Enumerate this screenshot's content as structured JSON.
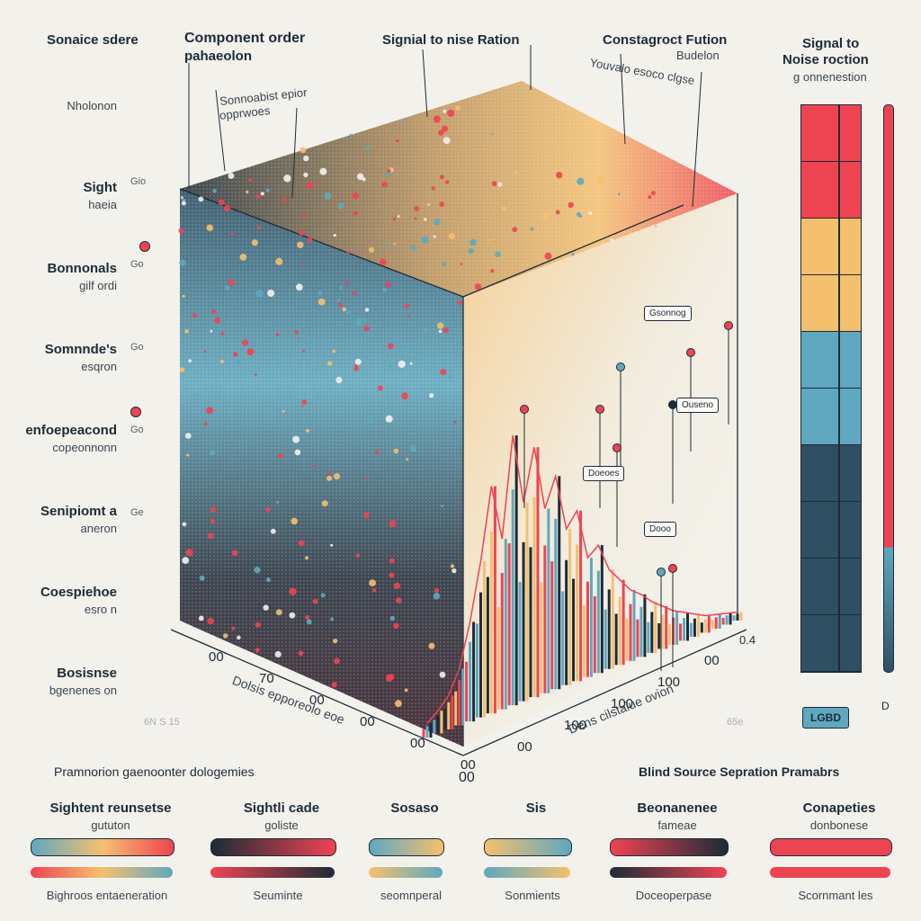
{
  "header": {
    "left_title": "Sonaice sdere",
    "component_order": "Component order",
    "component_order_sub": "pahaeolon",
    "center_title": "Signial to nise Ration",
    "right_title": "Constagroct Fution",
    "right_title_sub": "Budelon",
    "inner_note_1": "Sonnoabist epior",
    "inner_note_2": "opprwoes",
    "inner_note_3": "Youvalo esoco clgse"
  },
  "left_labels": [
    {
      "title": "",
      "sub": "Nholonon"
    },
    {
      "title": "Sight",
      "sub": "haeia"
    },
    {
      "title": "Bonnonals",
      "sub": "gilf ordi"
    },
    {
      "title": "Somnnde's",
      "sub": "esqron"
    },
    {
      "title": "enfoepeacond",
      "sub": "copeonnonn"
    },
    {
      "title": "Senipiomt a",
      "sub": "aneron"
    },
    {
      "title": "Coespiehoe",
      "sub": "esro n"
    },
    {
      "title": "Bosisnse",
      "sub": "bgenenes on"
    }
  ],
  "z_ticks": [
    "Gio",
    "Go",
    "Go",
    "Go",
    "Ge"
  ],
  "colorbar": {
    "title": "Signal to",
    "title2": "Noise roction",
    "sub": "g onnenestion",
    "segments": [
      "#ee4452",
      "#ee4452",
      "#f5c06e",
      "#f5c06e",
      "#5fa8bf",
      "#5fa8bf",
      "#2f4f63",
      "#2f4f63",
      "#2f4f63",
      "#2f4f63"
    ],
    "legend_key": "LGBD",
    "legend_key_mark": "D"
  },
  "axes": {
    "x_label": "Dolsis epporeolo eoe",
    "x_ticks": [
      "00",
      "70",
      "00",
      "00",
      "00",
      "00"
    ],
    "y_label": "Dens cilstaiue ovion",
    "y_ticks": [
      "00",
      "100",
      "100",
      "100",
      "00"
    ],
    "corner_tick": "0.4",
    "origin_tick": "00"
  },
  "callouts": [
    "Gsonnog",
    "Ouseno",
    "Doeoes",
    "Dooo"
  ],
  "faint_left": "6N S 15",
  "faint_right": "65e",
  "bottom": {
    "left_heading": "Pramnorion gaenoonter dologemies",
    "right_heading": "Blind Source Sepration Pramabrs",
    "groups": [
      {
        "title": "Sightent reunsetse",
        "sub": "gututon",
        "caption": "Bighroos entaeneration",
        "colors": [
          "#5fa8bf",
          "#f5c06e",
          "#ee4452"
        ]
      },
      {
        "title": "Sightli cade",
        "sub": "goliste",
        "caption": "Seuminte",
        "colors": [
          "#1d2b36",
          "#ee4452"
        ]
      },
      {
        "title": "Sosaso",
        "sub": "",
        "caption": "seomnperal",
        "colors": [
          "#5fa8bf",
          "#f5c06e"
        ]
      },
      {
        "title": "Sis",
        "sub": "",
        "caption": "Sonmients",
        "colors": [
          "#f5c06e",
          "#5fa8bf"
        ]
      },
      {
        "title": "Beonanenee",
        "sub": "fameae",
        "caption": "Doceoperpase",
        "colors": [
          "#ee4452",
          "#1d2b36"
        ]
      },
      {
        "title": "Conapeties",
        "sub": "donbonese",
        "caption": "Scornmant les",
        "colors": [
          "#ee4452",
          "#ee4452"
        ]
      }
    ]
  },
  "chart_data": {
    "type": "area",
    "title": "Signial to nise Ration",
    "xlabel": "Dolsis epporeolo eoe",
    "ylabel": "Dens cilstaiue ovion",
    "series": [
      {
        "name": "",
        "x": [
          0,
          1,
          2,
          3,
          4,
          5,
          6,
          7,
          8,
          9,
          10,
          11,
          12,
          13,
          14,
          15,
          16,
          17,
          18,
          19,
          20,
          21,
          22,
          23,
          24,
          25,
          26,
          27,
          28,
          29
        ],
        "values": [
          5,
          8,
          12,
          20,
          35,
          55,
          80,
          60,
          95,
          70,
          88,
          65,
          75,
          55,
          60,
          42,
          45,
          35,
          30,
          25,
          22,
          18,
          15,
          12,
          10,
          8,
          6,
          5,
          4,
          3
        ]
      }
    ]
  }
}
